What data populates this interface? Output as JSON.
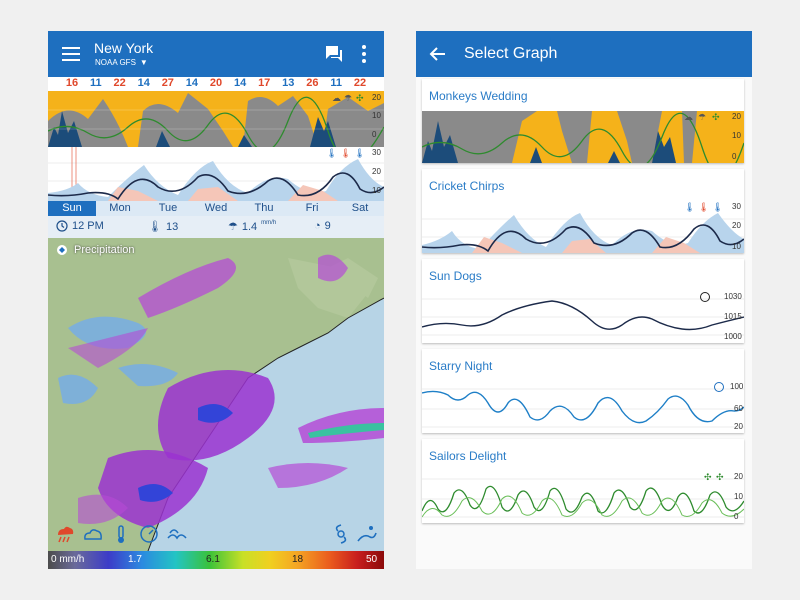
{
  "left": {
    "app_bar": {
      "city": "New York",
      "model": "NOAA GFS"
    },
    "temperatures": [
      "16",
      "11",
      "22",
      "14",
      "27",
      "14",
      "20",
      "14",
      "17",
      "13",
      "26",
      "11",
      "22"
    ],
    "graph_top_axis": [
      "20",
      "10",
      "0"
    ],
    "graph_mid_axis": [
      "30",
      "20",
      "10"
    ],
    "days": [
      "Sun",
      "Mon",
      "Tue",
      "Wed",
      "Thu",
      "Fri",
      "Sat"
    ],
    "info": {
      "time": "12 PM",
      "temp": "13",
      "precip_value": "1.4",
      "precip_unit": "mm/h",
      "wind": "9"
    },
    "layer_label": "Precipitation",
    "legend": [
      "0 mm/h",
      "1.7",
      "6.1",
      "18",
      "50"
    ]
  },
  "right": {
    "app_bar": {
      "title": "Select Graph"
    },
    "cards": [
      {
        "title": "Monkeys Wedding",
        "axis": [
          "20",
          "10",
          "0"
        ]
      },
      {
        "title": "Cricket Chirps",
        "axis": [
          "30",
          "20",
          "10"
        ]
      },
      {
        "title": "Sun Dogs",
        "axis": [
          "1030",
          "1015",
          "1000"
        ]
      },
      {
        "title": "Starry Night",
        "axis": [
          "100",
          "60",
          "20"
        ]
      },
      {
        "title": "Sailors Delight",
        "axis": [
          "20",
          "10",
          "0"
        ]
      }
    ]
  },
  "colors": {
    "primary": "#1e6fbf",
    "orange": "#f5b21a",
    "navy": "#1c4c7a",
    "temp_red": "#e0482b",
    "temp_blue": "#1e6fbf",
    "link": "#2a7cc7"
  }
}
